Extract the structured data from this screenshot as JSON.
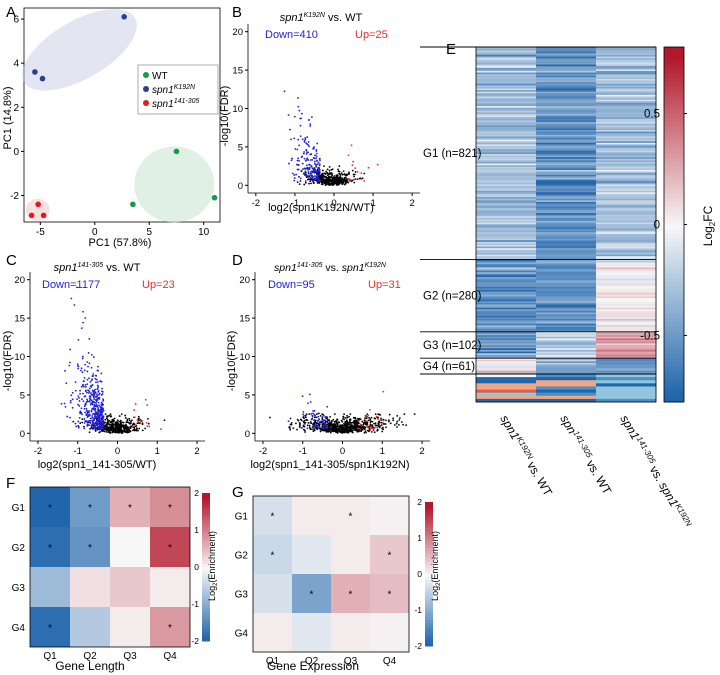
{
  "colors": {
    "wt": "#1a9850",
    "k192n": "#2c3e91",
    "d141": "#e31a1c",
    "down": "#1f1fd6",
    "up": "#e8302c",
    "ns": "#000000",
    "hm_neg": "#2166ac",
    "hm_pos": "#d6604d"
  },
  "panels": {
    "a": "A",
    "b": "B",
    "c": "C",
    "d": "D",
    "e": "E",
    "f": "F",
    "g": "G"
  },
  "chart_data": [
    {
      "id": "A",
      "type": "scatter",
      "xlabel": "PC1 (57.8%)",
      "ylabel": "PC1 (14.8%)",
      "xlim": [
        -6.5,
        11.5
      ],
      "ylim": [
        -3.2,
        6.5
      ],
      "xticks": [
        -5,
        0,
        5,
        10
      ],
      "yticks": [
        -2,
        0,
        2,
        4,
        6
      ],
      "legend": {
        "position": "right",
        "items": [
          "WT",
          "spn1",
          "spn1"
        ],
        "sup": [
          "",
          "K192N",
          "141-305"
        ]
      },
      "series": [
        {
          "name": "WT",
          "x": [
            7.5,
            3.5,
            11.0
          ],
          "y": [
            0.0,
            -2.4,
            -2.1
          ]
        },
        {
          "name": "spn1K192N",
          "x": [
            -5.5,
            -4.8,
            2.7
          ],
          "y": [
            3.6,
            3.3,
            6.1
          ]
        },
        {
          "name": "spn1141-305",
          "x": [
            -5.2,
            -5.8,
            -4.7
          ],
          "y": [
            -2.4,
            -2.9,
            -2.9
          ]
        }
      ]
    },
    {
      "id": "B",
      "type": "scatter",
      "subtype": "volcano",
      "title": "spn1",
      "title_sup": "K192N",
      "title_rest": " vs. WT",
      "xlabel": "log2(spn1K192N/WT)",
      "ylabel": "-log10(FDR)",
      "xlim": [
        -2.2,
        2.2
      ],
      "ylim": [
        -1,
        21
      ],
      "xticks": [
        -2,
        -1,
        0,
        1,
        2
      ],
      "yticks": [
        0,
        5,
        10,
        15,
        20
      ],
      "down_label": "Down=410",
      "up_label": "Up=25"
    },
    {
      "id": "C",
      "type": "scatter",
      "subtype": "volcano",
      "title": "spn1",
      "title_sup": "141-305",
      "title_rest": " vs. WT",
      "xlabel": "log2(spn1_141-305/WT)",
      "ylabel": "-log10(FDR)",
      "xlim": [
        -2.2,
        2.2
      ],
      "ylim": [
        -1,
        21
      ],
      "xticks": [
        -2,
        -1,
        0,
        1,
        2
      ],
      "yticks": [
        0,
        5,
        10,
        15,
        20
      ],
      "down_label": "Down=1177",
      "up_label": "Up=23"
    },
    {
      "id": "D",
      "type": "scatter",
      "subtype": "volcano",
      "title": "spn1",
      "title_sup": "141-305",
      "title_rest": " vs. ",
      "title2": "spn1",
      "title2_sup": "K192N",
      "xlabel": "log2(spn1_141-305/spn1K192N)",
      "ylabel": "-log10(FDR)",
      "xlim": [
        -2.2,
        2.2
      ],
      "ylim": [
        -1,
        21
      ],
      "xticks": [
        -2,
        -1,
        0,
        1,
        2
      ],
      "yticks": [
        0,
        5,
        10,
        15,
        20
      ],
      "down_label": "Down=95",
      "up_label": "Up=31"
    },
    {
      "id": "E",
      "type": "heatmap",
      "groups": [
        {
          "label": "G1 (n=821)",
          "n": 821
        },
        {
          "label": "G2 (n=280)",
          "n": 280
        },
        {
          "label": "G3 (n=102)",
          "n": 102
        },
        {
          "label": "G4 (n=61)",
          "n": 61
        }
      ],
      "columns": [
        {
          "main": "spn1",
          "sup": "K192N",
          "rest": " vs. WT"
        },
        {
          "main": "spn",
          "sup": "141-305",
          "rest": " vs. WT"
        },
        {
          "main": "spn1",
          "sup": "141-305",
          "rest": " vs. ",
          "main2": "spn1",
          "sup2": "K192N"
        }
      ],
      "group_means": [
        [
          -0.3,
          -0.55,
          -0.3
        ],
        [
          -0.5,
          -0.55,
          0.0
        ],
        [
          -0.55,
          -0.2,
          0.35
        ],
        [
          -0.05,
          -0.45,
          -0.45
        ]
      ],
      "colorbar": {
        "label": "Log",
        "sub": "2",
        "rest": "FC",
        "ticks": [
          "0.5",
          "0",
          "-0.5"
        ],
        "tick_values": [
          0.5,
          0,
          -0.5
        ],
        "range": [
          -0.8,
          0.8
        ]
      }
    },
    {
      "id": "F",
      "type": "heatmap",
      "xlabel": "Gene Length",
      "rows": [
        "G1",
        "G2",
        "G3",
        "G4"
      ],
      "cols": [
        "Q1",
        "Q2",
        "Q3",
        "Q4"
      ],
      "values": [
        [
          -2.0,
          -1.2,
          0.6,
          0.9
        ],
        [
          -1.8,
          -1.3,
          0.0,
          1.5
        ],
        [
          -0.8,
          0.2,
          0.4,
          0.1
        ],
        [
          -1.8,
          -0.6,
          0.1,
          0.8
        ]
      ],
      "significant": [
        [
          true,
          true,
          true,
          true
        ],
        [
          true,
          true,
          false,
          true
        ],
        [
          false,
          false,
          false,
          false
        ],
        [
          true,
          false,
          false,
          true
        ]
      ],
      "colorbar": {
        "label": "Log",
        "sub": "2",
        "rest": "(Enrichment)",
        "ticks": [
          "2",
          "1",
          "0",
          "-1",
          "-2"
        ],
        "tick_values": [
          2,
          1,
          0,
          -1,
          -2
        ],
        "range": [
          -2,
          2
        ]
      }
    },
    {
      "id": "G",
      "type": "heatmap",
      "xlabel": "Gene Expression",
      "rows": [
        "G1",
        "G2",
        "G3",
        "G4"
      ],
      "cols": [
        "Q1",
        "Q2",
        "Q3",
        "Q4"
      ],
      "values": [
        [
          -0.3,
          0.1,
          0.1,
          0.05
        ],
        [
          -0.4,
          -0.2,
          0.1,
          0.4
        ],
        [
          -0.3,
          -1.1,
          0.6,
          0.5
        ],
        [
          0.1,
          -0.2,
          0.1,
          0.05
        ]
      ],
      "significant": [
        [
          true,
          false,
          true,
          false
        ],
        [
          true,
          false,
          false,
          true
        ],
        [
          false,
          true,
          true,
          true
        ],
        [
          false,
          false,
          false,
          false
        ]
      ],
      "colorbar": {
        "label": "Log",
        "sub": "2",
        "rest": "(Enrichment)",
        "ticks": [
          "2",
          "1",
          "0",
          "-1",
          "-2"
        ],
        "tick_values": [
          2,
          1,
          0,
          -1,
          -2
        ],
        "range": [
          -2,
          2
        ]
      }
    }
  ]
}
